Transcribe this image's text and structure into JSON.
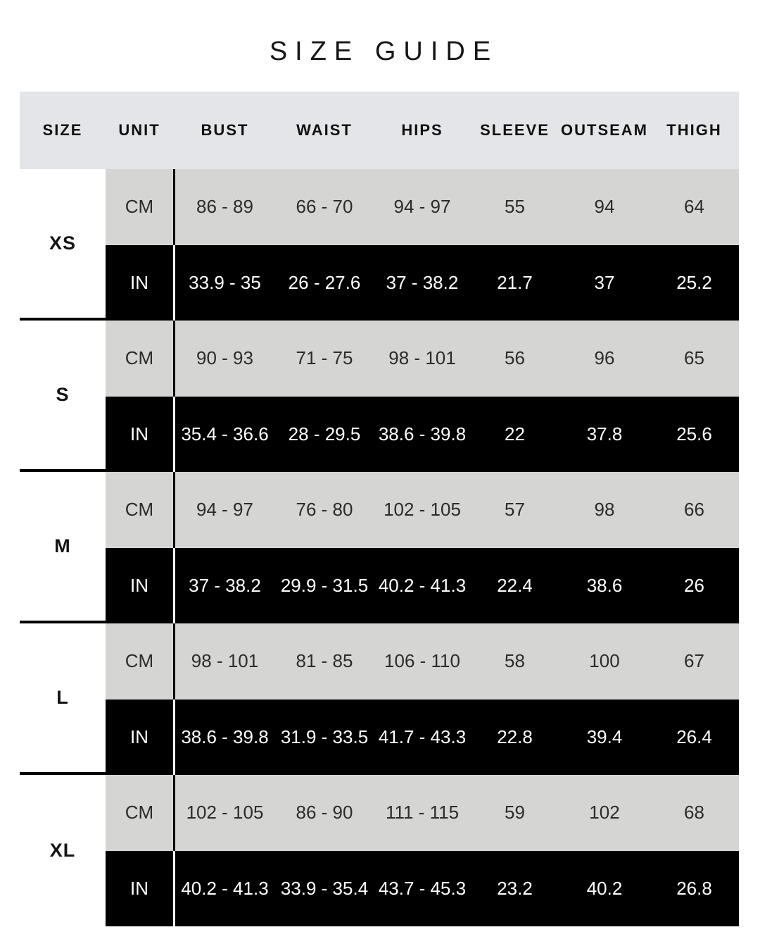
{
  "title": "SIZE GUIDE",
  "table": {
    "columns": [
      "SIZE",
      "UNIT",
      "BUST",
      "WAIST",
      "HIPS",
      "SLEEVE",
      "OUTSEAM",
      "THIGH"
    ],
    "rows": [
      {
        "size": "XS",
        "cm": {
          "label": "CM",
          "values": [
            "86 - 89",
            "66 - 70",
            "94 - 97",
            "55",
            "94",
            "64"
          ]
        },
        "in": {
          "label": "IN",
          "values": [
            "33.9 - 35",
            "26 - 27.6",
            "37 - 38.2",
            "21.7",
            "37",
            "25.2"
          ]
        }
      },
      {
        "size": "S",
        "cm": {
          "label": "CM",
          "values": [
            "90 - 93",
            "71 - 75",
            "98 - 101",
            "56",
            "96",
            "65"
          ]
        },
        "in": {
          "label": "IN",
          "values": [
            "35.4 - 36.6",
            "28 - 29.5",
            "38.6 - 39.8",
            "22",
            "37.8",
            "25.6"
          ]
        }
      },
      {
        "size": "M",
        "cm": {
          "label": "CM",
          "values": [
            "94 - 97",
            "76 - 80",
            "102 - 105",
            "57",
            "98",
            "66"
          ]
        },
        "in": {
          "label": "IN",
          "values": [
            "37 - 38.2",
            "29.9 - 31.5",
            "40.2 - 41.3",
            "22.4",
            "38.6",
            "26"
          ]
        }
      },
      {
        "size": "L",
        "cm": {
          "label": "CM",
          "values": [
            "98 - 101",
            "81 - 85",
            "106 - 110",
            "58",
            "100",
            "67"
          ]
        },
        "in": {
          "label": "IN",
          "values": [
            "38.6 - 39.8",
            "31.9 - 33.5",
            "41.7 - 43.3",
            "22.8",
            "39.4",
            "26.4"
          ]
        }
      },
      {
        "size": "XL",
        "cm": {
          "label": "CM",
          "values": [
            "102 - 105",
            "86 - 90",
            "111 - 115",
            "59",
            "102",
            "68"
          ]
        },
        "in": {
          "label": "IN",
          "values": [
            "40.2 - 41.3",
            "33.9 - 35.4",
            "43.7 - 45.3",
            "23.2",
            "40.2",
            "26.8"
          ]
        }
      }
    ]
  },
  "colors": {
    "page_bg": "#ffffff",
    "header_bg": "#e4e5e8",
    "cm_row_bg": "#d5d5d4",
    "in_row_bg": "#000000",
    "text_dark": "#1c1c1c",
    "text_light": "#ffffff",
    "separator": "#000000"
  }
}
